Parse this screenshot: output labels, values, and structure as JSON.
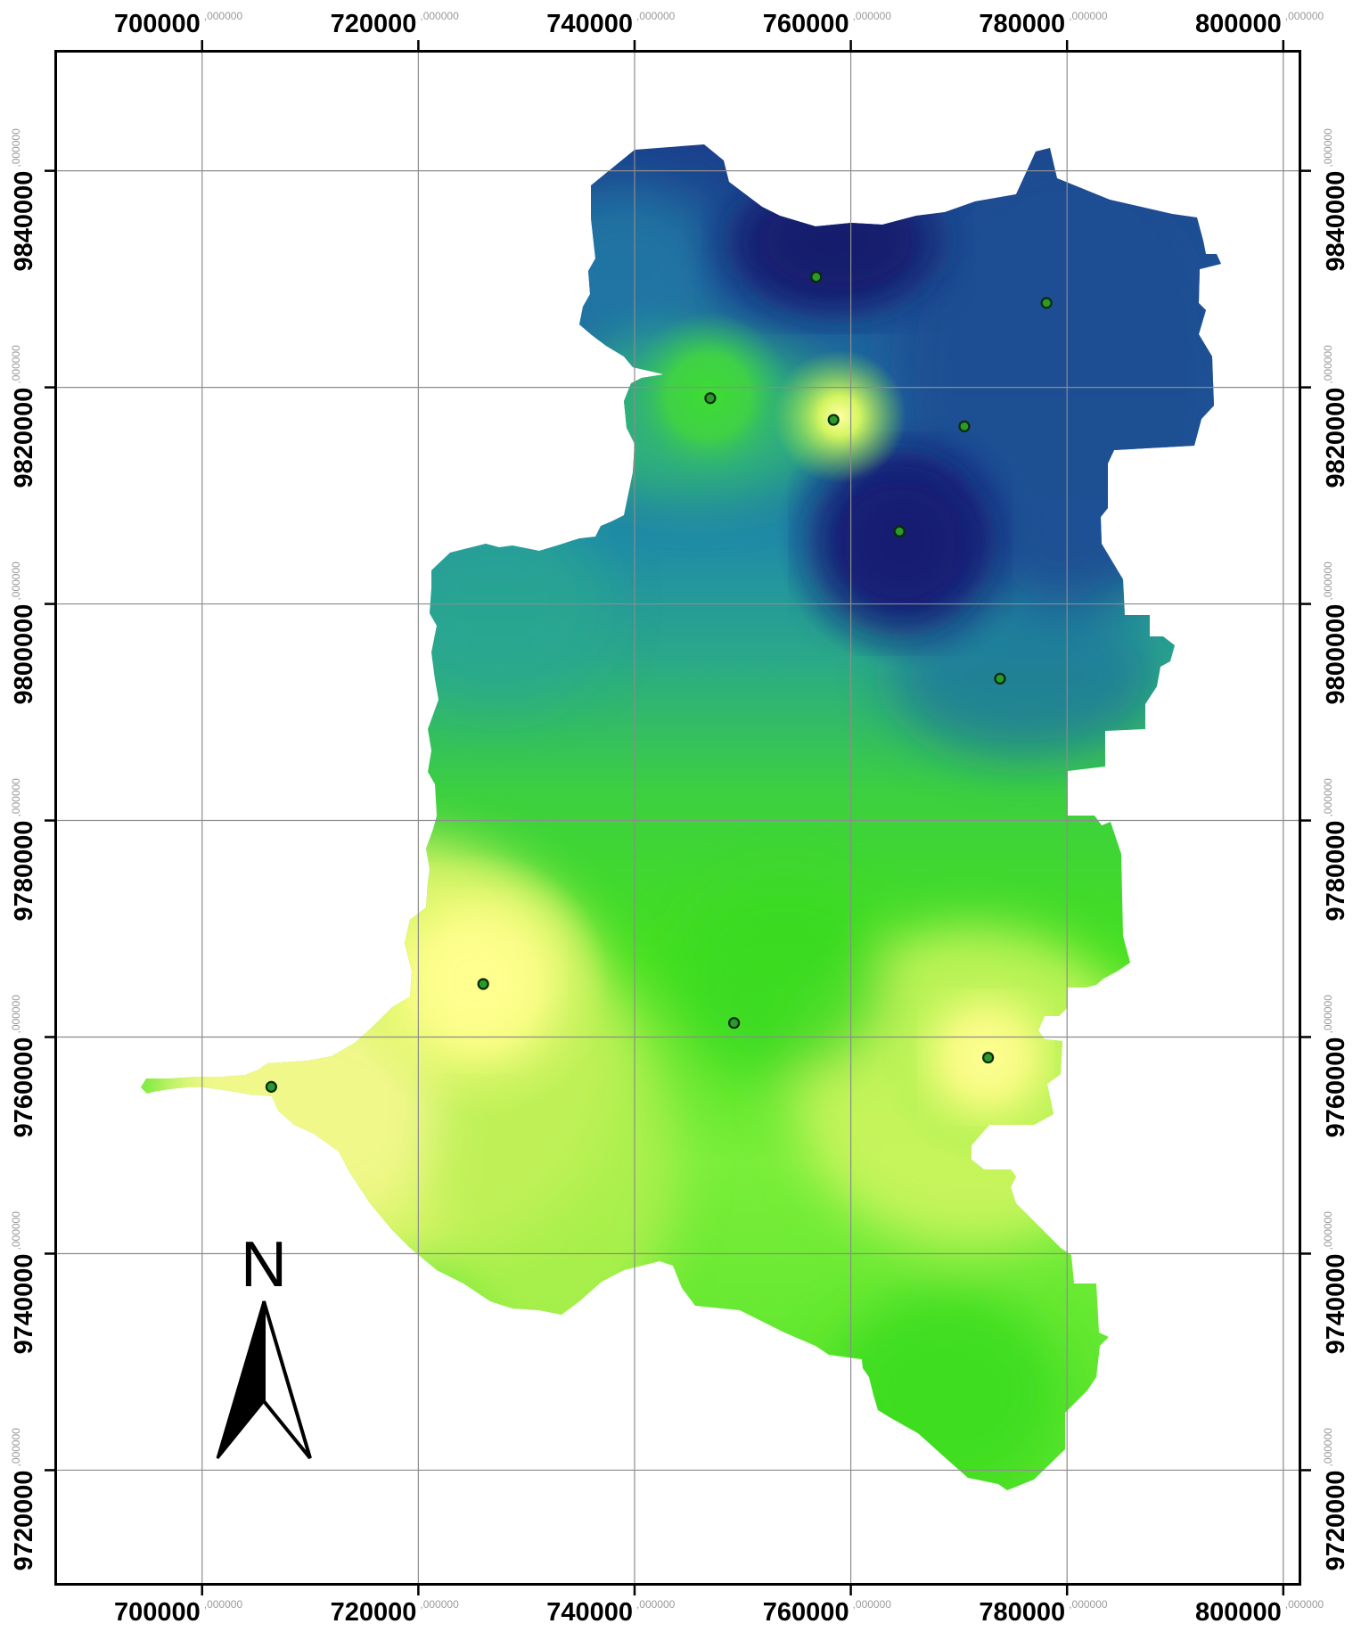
{
  "map": {
    "x_ticks": [
      {
        "value": 700000,
        "label": "700000",
        "suffix": ",000000"
      },
      {
        "value": 720000,
        "label": "720000",
        "suffix": ",000000"
      },
      {
        "value": 740000,
        "label": "740000",
        "suffix": ",000000"
      },
      {
        "value": 760000,
        "label": "760000",
        "suffix": ",000000"
      },
      {
        "value": 780000,
        "label": "780000",
        "suffix": ",000000"
      },
      {
        "value": 800000,
        "label": "800000",
        "suffix": ",000000"
      }
    ],
    "y_ticks": [
      {
        "value": 9840000,
        "label": "9840000",
        "suffix": ",000000"
      },
      {
        "value": 9820000,
        "label": "9820000",
        "suffix": ",000000"
      },
      {
        "value": 9800000,
        "label": "9800000",
        "suffix": ",000000"
      },
      {
        "value": 9780000,
        "label": "9780000",
        "suffix": ",000000"
      },
      {
        "value": 9760000,
        "label": "9760000",
        "suffix": ",000000"
      },
      {
        "value": 9740000,
        "label": "9740000",
        "suffix": ",000000"
      },
      {
        "value": 9720000,
        "label": "9720000",
        "suffix": ",000000"
      }
    ],
    "x_range": [
      686500,
      801500
    ],
    "y_range": [
      9709500,
      9851000
    ],
    "north_arrow": {
      "label": "N",
      "icon": "north-arrow-icon"
    },
    "colors": {
      "frame": "#000000",
      "grid": "#8c8c8c",
      "station_fill": "#2a9a2a",
      "station_stroke": "#0a2a0a",
      "ramp": [
        "#ffff8c",
        "#cdf562",
        "#3edc1e",
        "#2fae78",
        "#1f86a6",
        "#1c4e92",
        "#141f78"
      ]
    },
    "stations": [
      {
        "x": 756800,
        "y": 9830200
      },
      {
        "x": 778100,
        "y": 9827800
      },
      {
        "x": 747000,
        "y": 9819000
      },
      {
        "x": 758400,
        "y": 9817000
      },
      {
        "x": 770500,
        "y": 9816400
      },
      {
        "x": 764500,
        "y": 9806700
      },
      {
        "x": 773800,
        "y": 9793100
      },
      {
        "x": 726000,
        "y": 9764900
      },
      {
        "x": 749200,
        "y": 9761300
      },
      {
        "x": 772700,
        "y": 9758100
      },
      {
        "x": 706400,
        "y": 9755400
      }
    ]
  }
}
